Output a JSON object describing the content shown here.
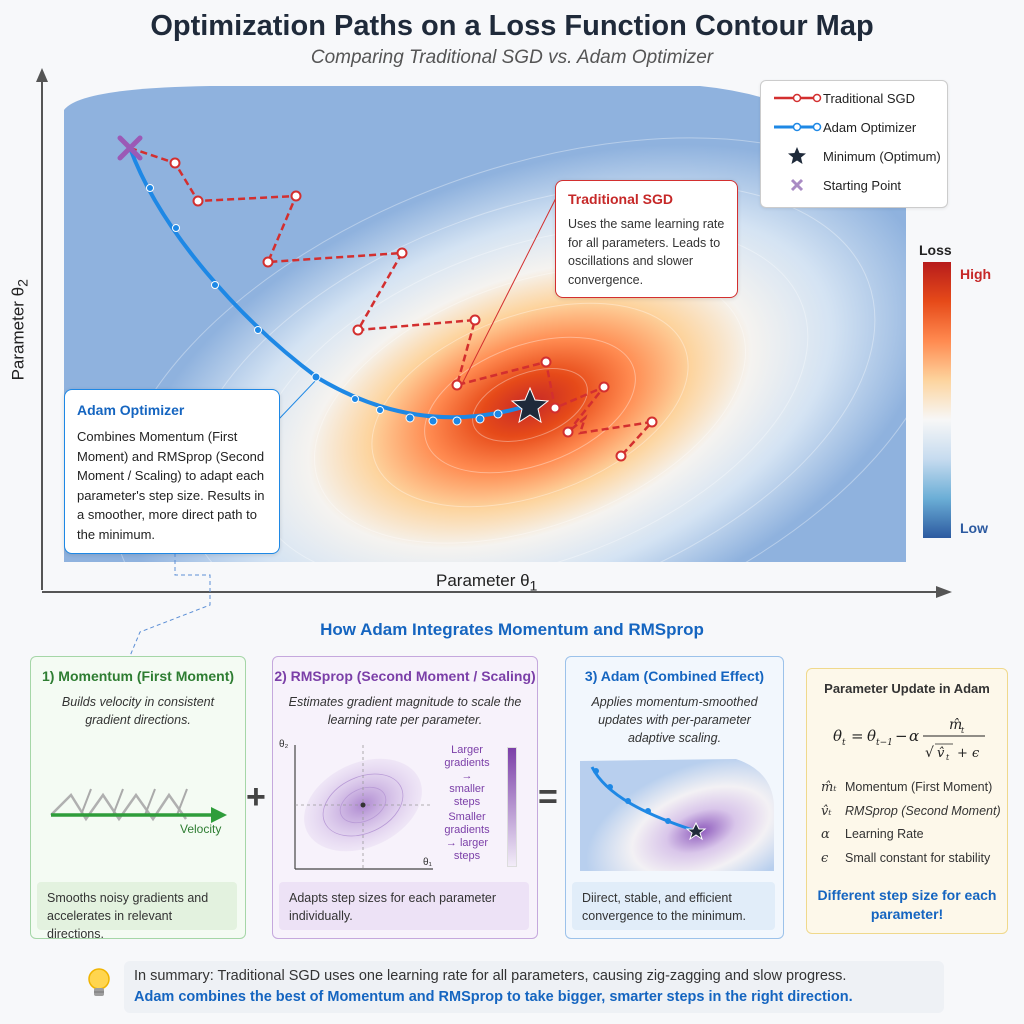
{
  "title": "Optimization Paths on a Loss Function Contour Map",
  "subtitle": "Comparing Traditional SGD vs. Adam Optimizer",
  "axes": {
    "x_label": "Parameter θ",
    "x_sub": "1",
    "y_label": "Parameter θ",
    "y_sub": "2"
  },
  "legend": {
    "items": [
      {
        "label": "Traditional SGD"
      },
      {
        "label": "Adam Optimizer"
      },
      {
        "label": "Minimum (Optimum)"
      },
      {
        "label": "Starting Point"
      }
    ]
  },
  "colorbar": {
    "title": "Loss",
    "high": "High",
    "low": "Low"
  },
  "sgd_callout": {
    "title": "Traditional SGD",
    "text": "Uses the same learning rate for all parameters. Leads to oscillations and slower convergence."
  },
  "adam_callout": {
    "title": "Adam Optimizer",
    "text": "Combines Momentum (First Moment) and RMSprop (Second Moment / Scaling) to adapt each parameter's step size. Results in a smoother, more direct path to the minimum."
  },
  "section_title": "How Adam Integrates Momentum and RMSprop",
  "panels": {
    "momentum": {
      "title": "1) Momentum (First Moment)",
      "desc": "Builds velocity in consistent gradient directions.",
      "arrow_label": "Velocity",
      "box": "Smooths noisy gradients and accelerates in relevant directions."
    },
    "rmsprop": {
      "title": "2) RMSprop (Second Moment / Scaling)",
      "desc": "Estimates gradient magnitude to scale the learning rate per parameter.",
      "axis_y": "θ₂",
      "axis_x": "θ₁",
      "larger": "Larger gradients → smaller steps",
      "smaller": "Smaller gradients → larger steps",
      "box": "Adapts step sizes for each parameter individually."
    },
    "adam": {
      "title": "3) Adam (Combined Effect)",
      "desc": "Applies momentum-smoothed updates with per-parameter adaptive scaling.",
      "box": "Diirect, stable, and efficient convergence to the minimum."
    },
    "update": {
      "title": "Parameter Update in Adam",
      "vars": [
        {
          "sym": "m̂ₜ",
          "label": "Momentum (First Moment)"
        },
        {
          "sym": "v̂ₜ",
          "label": "RMSprop (Second Moment)"
        },
        {
          "sym": "α",
          "label": "Learning Rate"
        },
        {
          "sym": "ϵ",
          "label": "Small constant for stability"
        }
      ],
      "note": "Different step size for each parameter!"
    }
  },
  "operators": {
    "plus": "+",
    "equals": "="
  },
  "summary": {
    "line1": "In summary: Traditional SGD uses one learning rate for all parameters, causing zig-zagging and slow progress.",
    "line2": "Adam combines the best of Momentum and RMSprop to take bigger, smarter steps in the right direction."
  },
  "colors": {
    "sgd": "#d32f2f",
    "adam": "#1e88e5",
    "minimum": "#1f2a3a",
    "start": "#9b59b6"
  }
}
